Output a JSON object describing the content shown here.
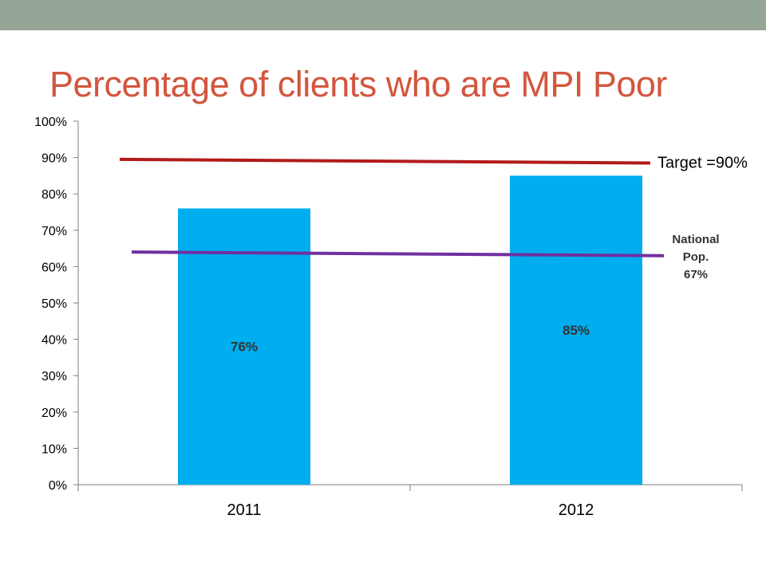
{
  "slide": {
    "title": "Percentage of clients who are MPI Poor"
  },
  "colors": {
    "top_bar": "#95a595",
    "title": "#d3563e",
    "bar": "#00adef",
    "target_line": "#b21b1b",
    "national_line": "#7030a0",
    "axis": "#7f7f7f"
  },
  "chart_data": {
    "type": "bar",
    "title": "",
    "xlabel": "",
    "ylabel": "",
    "categories": [
      "2011",
      "2012"
    ],
    "series": [
      {
        "values": [
          76,
          85
        ]
      }
    ],
    "data_labels": [
      "76%",
      "85%"
    ],
    "ylim": [
      0,
      100
    ],
    "yticks": [
      0,
      10,
      20,
      30,
      40,
      50,
      60,
      70,
      80,
      90,
      100
    ],
    "ytick_labels": [
      "0%",
      "10%",
      "20%",
      "30%",
      "40%",
      "50%",
      "60%",
      "70%",
      "80%",
      "90%",
      "100%"
    ],
    "grid": false,
    "legend": "none",
    "reference_lines": [
      {
        "label": "Target =90%",
        "y_start": 89.5,
        "y_end": 88.5,
        "color": "#b21b1b"
      },
      {
        "label_lines": [
          "National",
          "Pop.",
          "67%"
        ],
        "y_start": 64,
        "y_end": 63,
        "color": "#7030a0"
      }
    ]
  }
}
